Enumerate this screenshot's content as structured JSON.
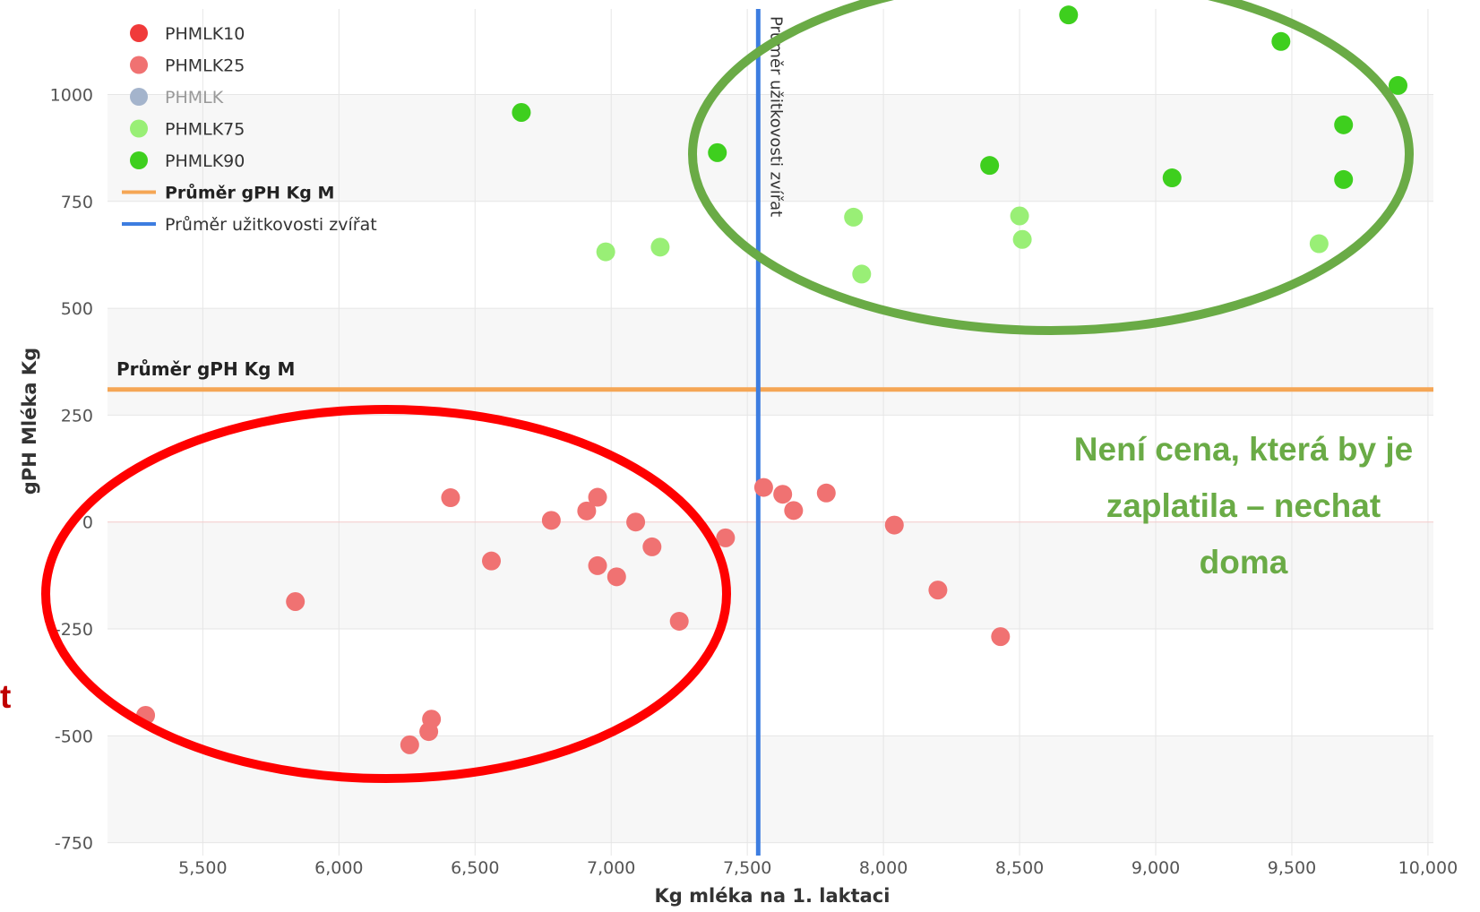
{
  "chart_data": {
    "type": "scatter",
    "xlabel": "Kg mléka na 1. laktaci",
    "ylabel": "gPH Mléka Kg",
    "xlim": [
      5150,
      10020
    ],
    "ylim": [
      -780,
      1200
    ],
    "x_ticks": [
      {
        "value": 5500,
        "label": "5,500"
      },
      {
        "value": 6000,
        "label": "6,000"
      },
      {
        "value": 6500,
        "label": "6,500"
      },
      {
        "value": 7000,
        "label": "7,000"
      },
      {
        "value": 7500,
        "label": "7,500"
      },
      {
        "value": 8000,
        "label": "8,000"
      },
      {
        "value": 8500,
        "label": "8,500"
      },
      {
        "value": 9000,
        "label": "9,000"
      },
      {
        "value": 9500,
        "label": "9,500"
      },
      {
        "value": 10000,
        "label": "10,000"
      }
    ],
    "y_ticks": [
      {
        "value": 1000,
        "label": "1000"
      },
      {
        "value": 750,
        "label": "750"
      },
      {
        "value": 500,
        "label": "500"
      },
      {
        "value": 250,
        "label": "250"
      },
      {
        "value": 0,
        "label": "0"
      },
      {
        "value": -250,
        "label": "-250"
      },
      {
        "value": -500,
        "label": "-500"
      },
      {
        "value": -750,
        "label": "-750"
      }
    ],
    "grid": true,
    "legend_position": "top-left",
    "series": [
      {
        "name": "PHMLK10",
        "color": "#f03a3a",
        "points": []
      },
      {
        "name": "PHMLK25",
        "color": "#f07272",
        "points": [
          [
            5290,
            -452
          ],
          [
            5840,
            -186
          ],
          [
            6260,
            -521
          ],
          [
            6330,
            -490
          ],
          [
            6340,
            -461
          ],
          [
            6410,
            57
          ],
          [
            6560,
            -91
          ],
          [
            6780,
            4
          ],
          [
            6910,
            26
          ],
          [
            6950,
            58
          ],
          [
            6950,
            -102
          ],
          [
            7020,
            -128
          ],
          [
            7090,
            0
          ],
          [
            7150,
            -58
          ],
          [
            7250,
            -232
          ],
          [
            7420,
            -37
          ],
          [
            7560,
            81
          ],
          [
            7630,
            65
          ],
          [
            7670,
            27
          ],
          [
            7790,
            68
          ],
          [
            8040,
            -7
          ],
          [
            8200,
            -159
          ],
          [
            8430,
            -268
          ]
        ]
      },
      {
        "name": "PHMLK",
        "color": "#a4b4cc",
        "points": []
      },
      {
        "name": "PHMLK75",
        "color": "#99ef76",
        "points": [
          [
            6980,
            632
          ],
          [
            7180,
            643
          ],
          [
            7890,
            713
          ],
          [
            7920,
            580
          ],
          [
            8500,
            716
          ],
          [
            8510,
            661
          ],
          [
            9600,
            651
          ]
        ]
      },
      {
        "name": "PHMLK90",
        "color": "#3ecf1e",
        "points": [
          [
            6670,
            958
          ],
          [
            7390,
            864
          ],
          [
            8390,
            834
          ],
          [
            8680,
            1186
          ],
          [
            9060,
            805
          ],
          [
            9460,
            1124
          ],
          [
            9690,
            929
          ],
          [
            9690,
            801
          ],
          [
            9890,
            1021
          ]
        ]
      }
    ],
    "reference_lines": {
      "horizontal": {
        "label": "Průměr gPH Kg M",
        "value": 310,
        "color": "#f5a655"
      },
      "vertical": {
        "label": "Průměr užitkovosti zvířat",
        "value": 7540,
        "color": "#3d7de0"
      }
    },
    "annotations": {
      "right_text": [
        "Není cena, která by je",
        "zaplatila – nechat",
        "doma"
      ],
      "left_text": "t",
      "green_ellipse_color": "#6aab46",
      "red_ellipse_color": "#ff0000"
    }
  }
}
